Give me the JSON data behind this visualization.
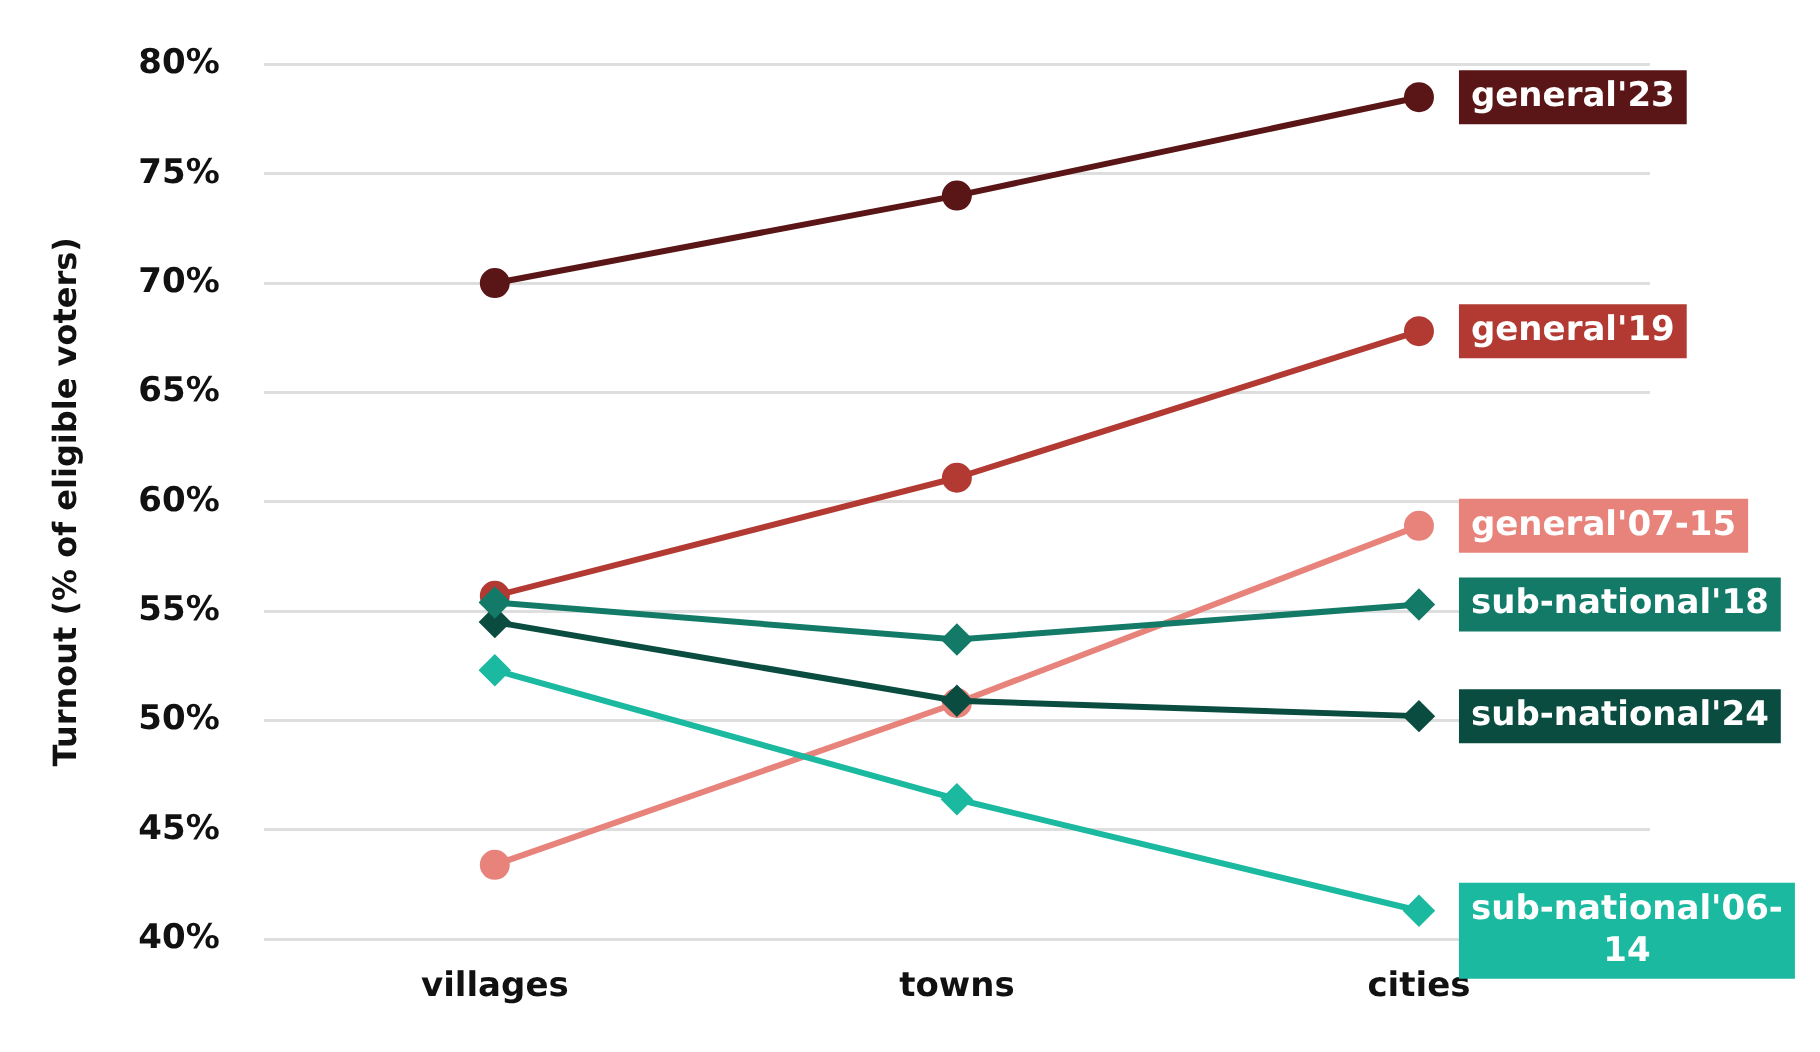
{
  "chart_data": {
    "type": "line",
    "ylabel": "Turnout (% of eligible voters)",
    "categories": [
      "villages",
      "towns",
      "cities"
    ],
    "series": [
      {
        "name": "general'23",
        "color": "#5a1616",
        "marker": "circle",
        "values": [
          70,
          74,
          78.5
        ]
      },
      {
        "name": "general'19",
        "color": "#b23a33",
        "marker": "circle",
        "values": [
          55.7,
          61.1,
          67.8
        ]
      },
      {
        "name": "general'07-15",
        "color": "#e8837b",
        "marker": "circle",
        "values": [
          43.4,
          50.8,
          58.9
        ]
      },
      {
        "name": "sub-national'18",
        "color": "#137a68",
        "marker": "diamond",
        "values": [
          55.4,
          53.7,
          55.3
        ]
      },
      {
        "name": "sub-national'24",
        "color": "#0b4c40",
        "marker": "diamond",
        "values": [
          54.5,
          50.9,
          50.2
        ]
      },
      {
        "name": "sub-national'06-14",
        "color": "#1ab9a0",
        "marker": "diamond",
        "values": [
          52.3,
          46.4,
          41.3
        ]
      }
    ],
    "ylim": [
      40,
      80
    ],
    "yticks": [
      {
        "value": 40,
        "label": "40%"
      },
      {
        "value": 45,
        "label": "45%"
      },
      {
        "value": 50,
        "label": "50%"
      },
      {
        "value": 55,
        "label": "55%"
      },
      {
        "value": 60,
        "label": "60%"
      },
      {
        "value": 65,
        "label": "65%"
      },
      {
        "value": 70,
        "label": "70%"
      },
      {
        "value": 75,
        "label": "75%"
      },
      {
        "value": 80,
        "label": "80%"
      }
    ],
    "grid": "y",
    "legend": false,
    "line_style": "solid"
  }
}
